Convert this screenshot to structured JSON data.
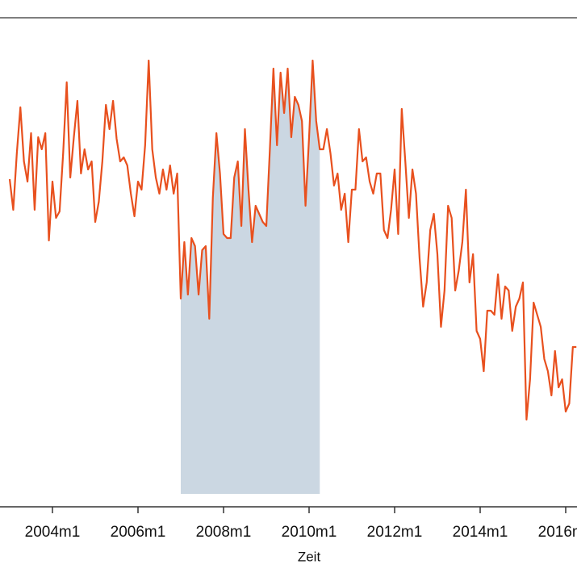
{
  "chart_data": {
    "type": "line",
    "x_label": "Zeit",
    "x": [
      "2003m1",
      "2003m2",
      "2003m3",
      "2003m4",
      "2003m5",
      "2003m6",
      "2003m7",
      "2003m8",
      "2003m9",
      "2003m10",
      "2003m11",
      "2003m12",
      "2004m1",
      "2004m2",
      "2004m3",
      "2004m4",
      "2004m5",
      "2004m6",
      "2004m7",
      "2004m8",
      "2004m9",
      "2004m10",
      "2004m11",
      "2004m12",
      "2005m1",
      "2005m2",
      "2005m3",
      "2005m4",
      "2005m5",
      "2005m6",
      "2005m7",
      "2005m8",
      "2005m9",
      "2005m10",
      "2005m11",
      "2005m12",
      "2006m1",
      "2006m2",
      "2006m3",
      "2006m4",
      "2006m5",
      "2006m6",
      "2006m7",
      "2006m8",
      "2006m9",
      "2006m10",
      "2006m11",
      "2006m12",
      "2007m1",
      "2007m2",
      "2007m3",
      "2007m4",
      "2007m5",
      "2007m6",
      "2007m7",
      "2007m8",
      "2007m9",
      "2007m10",
      "2007m11",
      "2007m12",
      "2008m1",
      "2008m2",
      "2008m3",
      "2008m4",
      "2008m5",
      "2008m6",
      "2008m7",
      "2008m8",
      "2008m9",
      "2008m10",
      "2008m11",
      "2008m12",
      "2009m1",
      "2009m2",
      "2009m3",
      "2009m4",
      "2009m5",
      "2009m6",
      "2009m7",
      "2009m8",
      "2009m9",
      "2009m10",
      "2009m11",
      "2009m12",
      "2010m1",
      "2010m2",
      "2010m3",
      "2010m4",
      "2010m5",
      "2010m6",
      "2010m7",
      "2010m8",
      "2010m9",
      "2010m10",
      "2010m11",
      "2010m12",
      "2011m1",
      "2011m2",
      "2011m3",
      "2011m4",
      "2011m5",
      "2011m6",
      "2011m7",
      "2011m8",
      "2011m9",
      "2011m10",
      "2011m11",
      "2011m12",
      "2012m1",
      "2012m2",
      "2012m3",
      "2012m4",
      "2012m5",
      "2012m6",
      "2012m7",
      "2012m8",
      "2012m9",
      "2012m10",
      "2012m11",
      "2012m12",
      "2013m1",
      "2013m2",
      "2013m3",
      "2013m4",
      "2013m5",
      "2013m6",
      "2013m7",
      "2013m8",
      "2013m9",
      "2013m10",
      "2013m11",
      "2013m12",
      "2014m1",
      "2014m2",
      "2014m3",
      "2014m4",
      "2014m5",
      "2014m6",
      "2014m7",
      "2014m8",
      "2014m9",
      "2014m10",
      "2014m11",
      "2014m12",
      "2015m1",
      "2015m2",
      "2015m3",
      "2015m4",
      "2015m5",
      "2015m6",
      "2015m7",
      "2015m8",
      "2015m9",
      "2015m10",
      "2015m11",
      "2015m12",
      "2016m1",
      "2016m2",
      "2016m3",
      "2016m4"
    ],
    "values": [
      406,
      368,
      438,
      495,
      428,
      403,
      463,
      368,
      458,
      443,
      463,
      330,
      403,
      358,
      366,
      438,
      526,
      408,
      458,
      503,
      413,
      443,
      418,
      428,
      353,
      378,
      428,
      498,
      468,
      503,
      456,
      428,
      433,
      423,
      388,
      360,
      403,
      393,
      448,
      553,
      443,
      408,
      388,
      418,
      393,
      423,
      388,
      413,
      258,
      328,
      263,
      333,
      323,
      263,
      318,
      323,
      233,
      383,
      463,
      413,
      338,
      333,
      333,
      408,
      428,
      348,
      468,
      393,
      328,
      373,
      363,
      353,
      348,
      443,
      543,
      448,
      538,
      488,
      543,
      458,
      508,
      498,
      478,
      373,
      458,
      553,
      478,
      443,
      443,
      468,
      438,
      398,
      413,
      368,
      388,
      328,
      393,
      393,
      468,
      428,
      433,
      403,
      388,
      413,
      413,
      343,
      333,
      368,
      418,
      338,
      493,
      428,
      358,
      418,
      388,
      308,
      248,
      278,
      343,
      363,
      313,
      223,
      268,
      373,
      358,
      268,
      293,
      328,
      393,
      278,
      313,
      218,
      208,
      168,
      243,
      243,
      238,
      288,
      233,
      273,
      268,
      218,
      248,
      258,
      278,
      108,
      158,
      253,
      238,
      223,
      183,
      168,
      138,
      193,
      148,
      158,
      118,
      128,
      198,
      198
    ],
    "color": "#e8501e",
    "shade_color": "#cbd7e2",
    "shaded_range": [
      "2007m1",
      "2010m4"
    ],
    "ylim": [
      0,
      606
    ],
    "xticks": [
      "2004m1",
      "2006m1",
      "2008m1",
      "2010m1",
      "2012m1",
      "2014m1",
      "2016m1"
    ]
  }
}
